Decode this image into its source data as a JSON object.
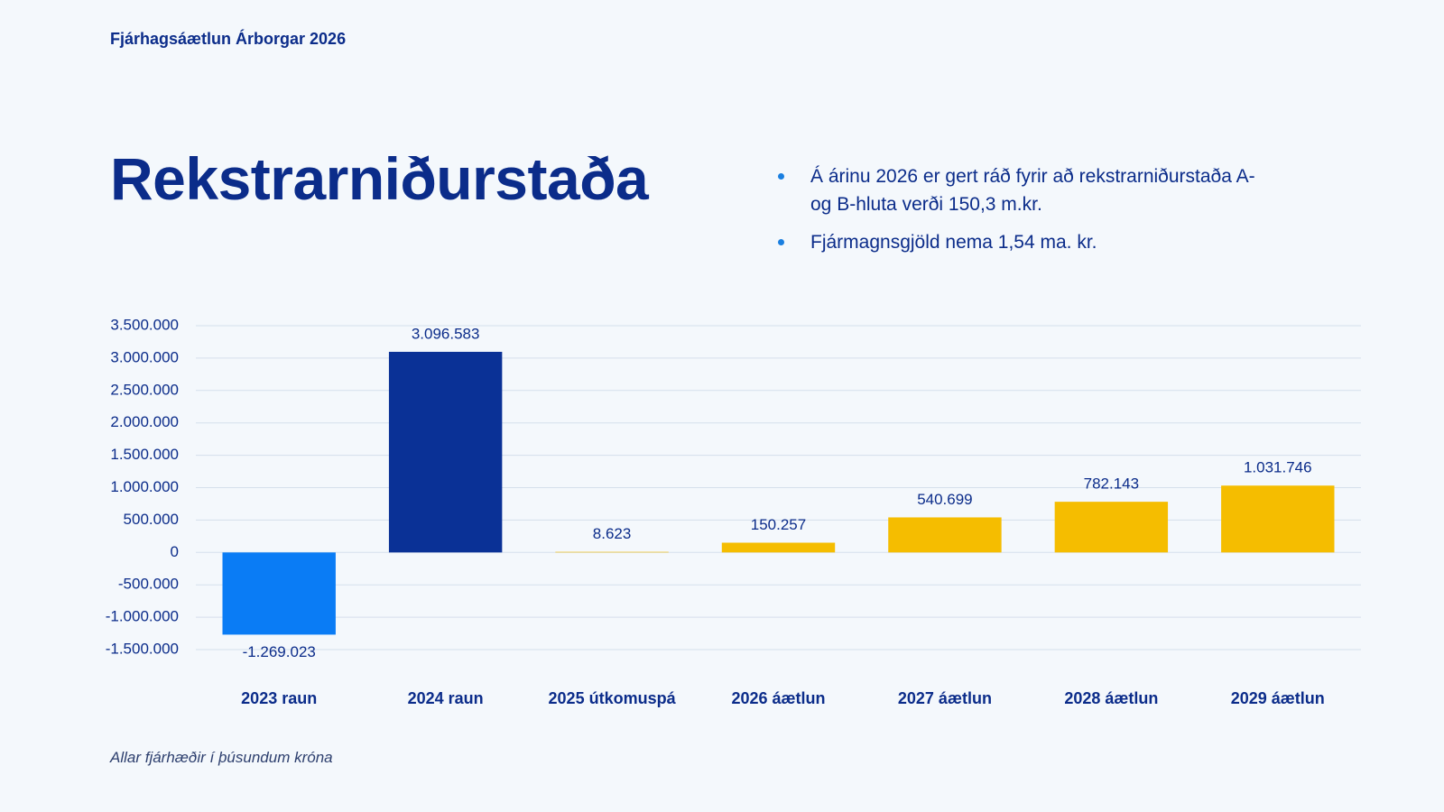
{
  "header": "Fjárhagsáætlun Árborgar 2026",
  "bullets": [
    "Á árinu 2026 er gert ráð fyrir að rekstrarniðurstaða A- og B-hluta verði 150,3 m.kr.",
    "Fjármagnsgjöld nema 1,54 ma. kr."
  ],
  "note": "Allar fjárhæðir í þúsundum króna",
  "chart_data": {
    "type": "bar",
    "title": "Rekstrarniðurstaða",
    "categories": [
      "2023 raun",
      "2024 raun",
      "2025 útkomuspá",
      "2026 áætlun",
      "2027 áætlun",
      "2028 áætlun",
      "2029 áætlun"
    ],
    "values": [
      -1269023,
      3096583,
      8623,
      150257,
      540699,
      782143,
      1031746
    ],
    "value_labels": [
      "-1.269.023",
      "3.096.583",
      "8.623",
      "150.257",
      "540.699",
      "782.143",
      "1.031.746"
    ],
    "colors": [
      "#0a7cf5",
      "#0a3196",
      "#f5bd00",
      "#f5bd00",
      "#f5bd00",
      "#f5bd00",
      "#f5bd00"
    ],
    "ylim": [
      -1500000,
      3500000
    ],
    "yticks": [
      {
        "value": -1500000,
        "label": "-1.500.000"
      },
      {
        "value": -1000000,
        "label": "-1.000.000"
      },
      {
        "value": -500000,
        "label": "-500.000"
      },
      0,
      {
        "value": 500000,
        "label": "500.000"
      },
      {
        "value": 1000000,
        "label": "1.000.000"
      },
      {
        "value": 1500000,
        "label": "1.500.000"
      },
      {
        "value": 2000000,
        "label": "2.000.000"
      },
      {
        "value": 2500000,
        "label": "2.500.000"
      },
      {
        "value": 3000000,
        "label": "3.000.000"
      },
      {
        "value": 3500000,
        "label": "3.500.000"
      }
    ],
    "grid": true
  }
}
